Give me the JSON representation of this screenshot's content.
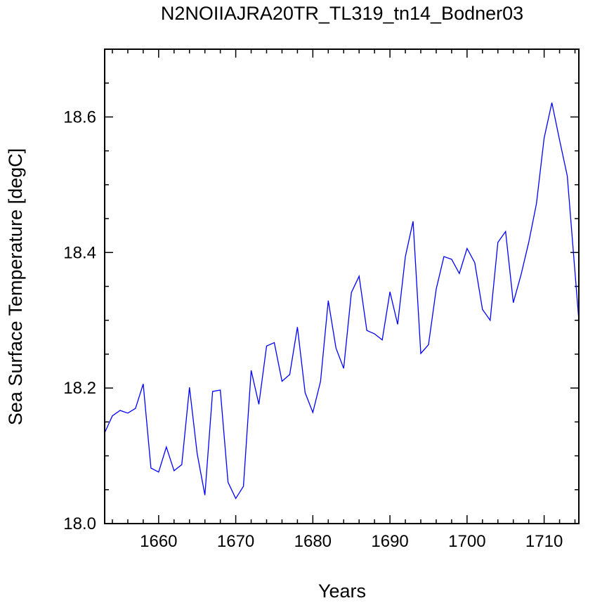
{
  "chart_data": {
    "type": "line",
    "title": "N2NOIIAJRA20TR_TL319_tn14_Bodner03",
    "xlabel": "Years",
    "ylabel": "Sea Surface Temperature [degC]",
    "xlim": [
      1653,
      1714.5
    ],
    "ylim": [
      18.0,
      18.7
    ],
    "x_ticks": [
      1660,
      1670,
      1680,
      1690,
      1700,
      1710
    ],
    "x_tick_labels": [
      "1660",
      "1670",
      "1680",
      "1690",
      "1700",
      "1710"
    ],
    "x_minor_step": 2,
    "y_ticks": [
      18.0,
      18.2,
      18.4,
      18.6
    ],
    "y_tick_labels": [
      "18.0",
      "18.2",
      "18.4",
      "18.6"
    ],
    "y_minor_step": 0.05,
    "grid": false,
    "series": [
      {
        "color": "#0000ff",
        "x": [
          1653,
          1654,
          1655,
          1656,
          1657,
          1658,
          1659,
          1660,
          1661,
          1662,
          1663,
          1664,
          1665,
          1666,
          1667,
          1668,
          1669,
          1670,
          1671,
          1672,
          1673,
          1674,
          1675,
          1676,
          1677,
          1678,
          1679,
          1680,
          1681,
          1682,
          1683,
          1684,
          1685,
          1686,
          1687,
          1688,
          1689,
          1690,
          1691,
          1692,
          1693,
          1694,
          1695,
          1696,
          1697,
          1698,
          1699,
          1700,
          1701,
          1702,
          1703,
          1704,
          1705,
          1706,
          1707,
          1708,
          1709,
          1710,
          1711,
          1712,
          1713,
          1714.5
        ],
        "y": [
          18.134,
          18.159,
          18.167,
          18.163,
          18.17,
          18.206,
          18.082,
          18.076,
          18.113,
          18.078,
          18.087,
          18.201,
          18.103,
          18.042,
          18.195,
          18.197,
          18.061,
          18.037,
          18.055,
          18.226,
          18.176,
          18.262,
          18.267,
          18.21,
          18.22,
          18.29,
          18.193,
          18.164,
          18.21,
          18.329,
          18.259,
          18.229,
          18.341,
          18.365,
          18.285,
          18.28,
          18.271,
          18.342,
          18.294,
          18.394,
          18.446,
          18.251,
          18.264,
          18.346,
          18.394,
          18.39,
          18.369,
          18.406,
          18.385,
          18.316,
          18.3,
          18.415,
          18.431,
          18.326,
          18.367,
          18.415,
          18.472,
          18.569,
          18.621,
          18.566,
          18.513,
          18.3
        ]
      }
    ]
  }
}
